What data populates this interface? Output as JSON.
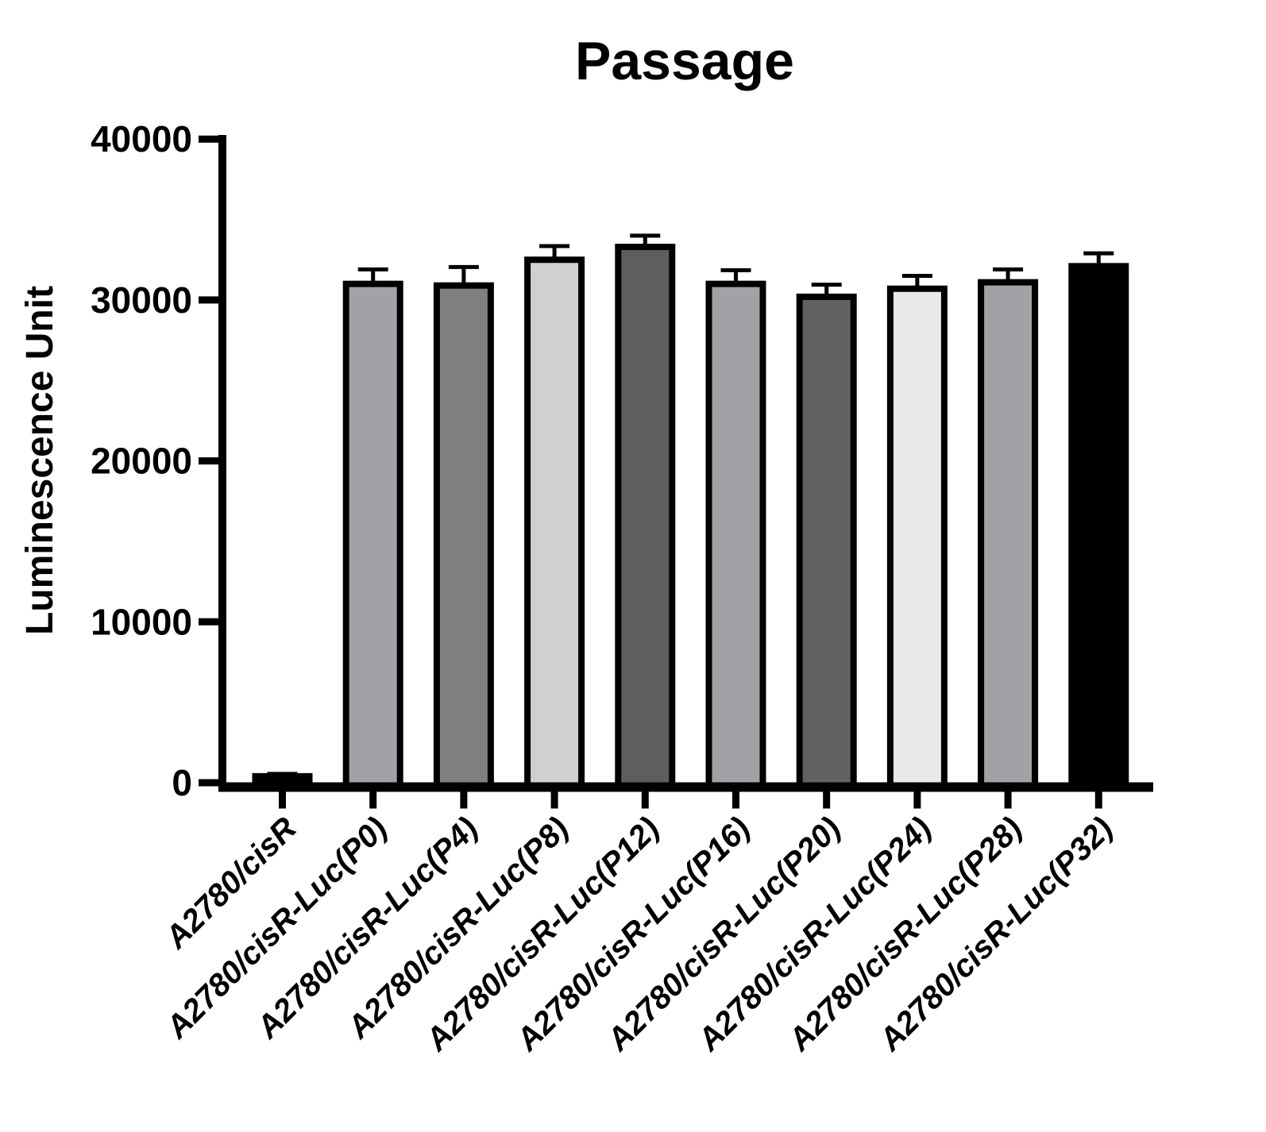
{
  "chart_data": {
    "type": "bar",
    "title": "Passage",
    "xlabel": "",
    "ylabel": "Luminescence Unit",
    "ylim": [
      0,
      40000
    ],
    "yticks": [
      0,
      10000,
      20000,
      30000,
      40000
    ],
    "ytick_labels": [
      "0",
      "10000",
      "20000",
      "30000",
      "40000"
    ],
    "grid": false,
    "legend_position": "none",
    "background_color": "#FFFFFF",
    "axis_color": "#000000",
    "text_color": "#000000",
    "bar_outline_color": "#000000",
    "error_bar_color": "#000000",
    "error_bar_direction": "up",
    "categories": [
      "A2780/cisR",
      "A2780/cisR-Luc(P0)",
      "A2780/cisR-Luc(P4)",
      "A2780/cisR-Luc(P8)",
      "A2780/cisR-Luc(P12)",
      "A2780/cisR-Luc(P16)",
      "A2780/cisR-Luc(P20)",
      "A2780/cisR-Luc(P24)",
      "A2780/cisR-Luc(P28)",
      "A2780/cisR-Luc(P32)"
    ],
    "series": [
      {
        "name": "Luminescence Unit",
        "values": [
          400,
          31000,
          30900,
          32500,
          33300,
          31000,
          30200,
          30700,
          31100,
          32100
        ],
        "errors_up": [
          150,
          900,
          1150,
          850,
          700,
          850,
          750,
          800,
          800,
          800
        ]
      }
    ],
    "bar_fill_colors": [
      "#000000",
      "#A2A2A6",
      "#808080",
      "#D0D0D0",
      "#5E5E5E",
      "#A2A2A6",
      "#616161",
      "#E9E9E9",
      "#A2A2A6",
      "#000000"
    ]
  }
}
